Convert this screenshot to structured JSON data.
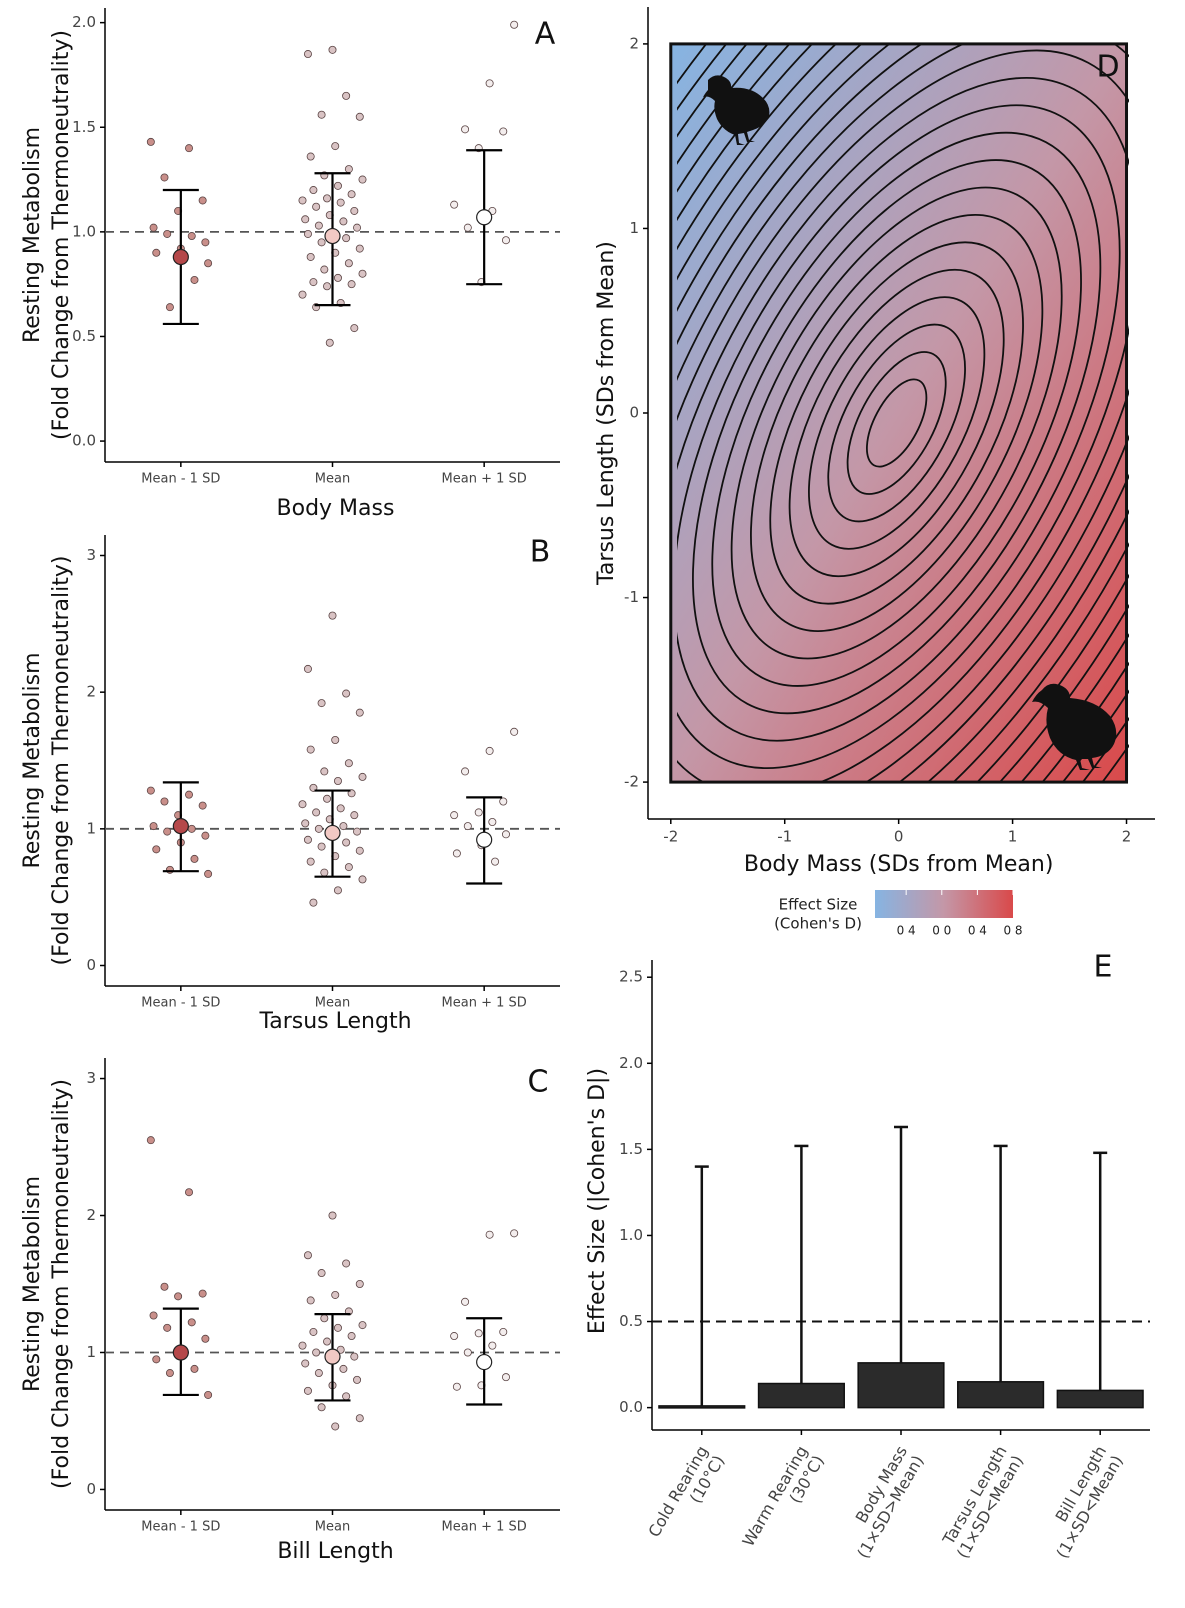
{
  "chart_data": [
    {
      "type": "dot",
      "label": "A",
      "xlabel": "Body Mass",
      "ylabel": [
        "Resting Metabolism",
        "(Fold Change from Thermoneutrality)"
      ],
      "categories": [
        "Mean - 1 SD",
        "Mean",
        "Mean + 1 SD"
      ],
      "ylim": [
        -0.1,
        2.07
      ],
      "yticks": [
        {
          "value": 0,
          "label": "0.0"
        },
        {
          "value": 0.5,
          "label": "0.5"
        },
        {
          "value": 1,
          "label": "1.0"
        },
        {
          "value": 1.5,
          "label": "1.5"
        },
        {
          "value": 2,
          "label": "2.0"
        }
      ],
      "hline": 1,
      "groups": [
        {
          "color": "#b5484a",
          "point_color": "#c98f8a",
          "mean": 0.88,
          "lower": 0.56,
          "upper": 1.2,
          "points": [
            1.43,
            1.4,
            1.26,
            1.15,
            1.1,
            1.02,
            0.98,
            0.99,
            0.95,
            0.92,
            0.9,
            0.77,
            0.64,
            0.85
          ]
        },
        {
          "color": "#f2c9c4",
          "point_color": "#d9c3c4",
          "mean": 0.98,
          "lower": 0.65,
          "upper": 1.28,
          "points": [
            1.87,
            1.85,
            1.65,
            1.56,
            1.55,
            1.41,
            1.36,
            1.3,
            1.27,
            1.25,
            1.22,
            1.2,
            1.18,
            1.16,
            1.15,
            1.14,
            1.12,
            1.1,
            1.08,
            1.06,
            1.05,
            1.03,
            1.02,
            1.0,
            0.99,
            0.97,
            0.95,
            0.92,
            0.9,
            0.88,
            0.85,
            0.82,
            0.8,
            0.78,
            0.76,
            0.75,
            0.74,
            0.7,
            0.66,
            0.64,
            0.54,
            0.47
          ]
        },
        {
          "color": "#ffffff",
          "point_color": "#f3eded",
          "mean": 1.07,
          "lower": 0.75,
          "upper": 1.39,
          "points": [
            1.99,
            1.71,
            1.49,
            1.48,
            1.4,
            1.13,
            1.1,
            1.02,
            0.96,
            0.76
          ]
        }
      ]
    },
    {
      "type": "dot",
      "label": "B",
      "xlabel": "Tarsus Length",
      "ylabel": [
        "Resting Metabolism",
        "(Fold Change from Thermoneutrality)"
      ],
      "categories": [
        "Mean - 1 SD",
        "Mean",
        "Mean + 1 SD"
      ],
      "ylim": [
        -0.15,
        3.15
      ],
      "yticks": [
        0,
        1,
        2,
        3
      ],
      "hline": 1,
      "groups": [
        {
          "color": "#b5484a",
          "point_color": "#c98f8a",
          "mean": 1.02,
          "lower": 0.69,
          "upper": 1.34,
          "points": [
            1.28,
            1.25,
            1.2,
            1.17,
            1.1,
            1.02,
            1.0,
            0.98,
            0.95,
            0.9,
            0.85,
            0.78,
            0.7,
            0.67
          ]
        },
        {
          "color": "#f2c9c4",
          "point_color": "#d9c3c4",
          "mean": 0.97,
          "lower": 0.65,
          "upper": 1.28,
          "points": [
            2.56,
            2.17,
            1.99,
            1.92,
            1.85,
            1.65,
            1.58,
            1.48,
            1.42,
            1.38,
            1.35,
            1.3,
            1.26,
            1.22,
            1.18,
            1.15,
            1.12,
            1.1,
            1.07,
            1.04,
            1.02,
            1.0,
            0.98,
            0.95,
            0.92,
            0.9,
            0.87,
            0.84,
            0.8,
            0.76,
            0.72,
            0.68,
            0.63,
            0.55,
            0.46
          ]
        },
        {
          "color": "#ffffff",
          "point_color": "#f3eded",
          "mean": 0.92,
          "lower": 0.6,
          "upper": 1.23,
          "points": [
            1.71,
            1.57,
            1.42,
            1.2,
            1.12,
            1.1,
            1.05,
            1.02,
            0.96,
            0.88,
            0.82,
            0.76
          ]
        }
      ]
    },
    {
      "type": "dot",
      "label": "C",
      "xlabel": "Bill Length",
      "ylabel": [
        "Resting Metabolism",
        "(Fold Change from Thermoneutrality)"
      ],
      "categories": [
        "Mean - 1 SD",
        "Mean",
        "Mean + 1 SD"
      ],
      "ylim": [
        -0.15,
        3.15
      ],
      "yticks": [
        0,
        1,
        2,
        3
      ],
      "hline": 1,
      "groups": [
        {
          "color": "#b5484a",
          "point_color": "#c98f8a",
          "mean": 1.0,
          "lower": 0.69,
          "upper": 1.32,
          "points": [
            2.55,
            2.17,
            1.48,
            1.43,
            1.41,
            1.27,
            1.22,
            1.18,
            1.1,
            1.0,
            0.95,
            0.88,
            0.85,
            0.69
          ]
        },
        {
          "color": "#f2c9c4",
          "point_color": "#d9c3c4",
          "mean": 0.97,
          "lower": 0.65,
          "upper": 1.28,
          "points": [
            2.0,
            1.71,
            1.65,
            1.58,
            1.5,
            1.42,
            1.38,
            1.3,
            1.25,
            1.2,
            1.18,
            1.15,
            1.12,
            1.08,
            1.05,
            1.02,
            1.0,
            0.97,
            0.95,
            0.92,
            0.88,
            0.85,
            0.8,
            0.76,
            0.72,
            0.68,
            0.6,
            0.52,
            0.46
          ]
        },
        {
          "color": "#ffffff",
          "point_color": "#f3eded",
          "mean": 0.93,
          "lower": 0.62,
          "upper": 1.25,
          "points": [
            1.87,
            1.86,
            1.37,
            1.15,
            1.14,
            1.12,
            1.05,
            1.0,
            0.82,
            0.76,
            0.75
          ]
        }
      ]
    },
    {
      "type": "heatmap",
      "label": "D",
      "xlabel": "Body Mass (SDs from Mean)",
      "ylabel": "Tarsus Length (SDs from Mean)",
      "xlim": [
        -2.2,
        2.25
      ],
      "ylim": [
        -2.2,
        2.2
      ],
      "xticks": [
        -2,
        -1,
        0,
        1,
        2
      ],
      "yticks": [
        -2,
        -1,
        0,
        1,
        2
      ],
      "extent": [
        -2,
        2
      ],
      "colors": [
        "#86b4e2",
        "#c497a7",
        "#d9494a"
      ],
      "legend_title": [
        "Effect Size",
        "(Cohen's D)"
      ],
      "clim": [
        -0.75,
        0.8
      ],
      "cticks": [
        {
          "value": -0.4,
          "label": "0 4"
        },
        {
          "value": 0,
          "label": "0 0"
        },
        {
          "value": 0.4,
          "label": "0 4"
        },
        {
          "value": 0.8,
          "label": "0 8"
        }
      ]
    },
    {
      "type": "bar",
      "label": "E",
      "ylabel": "Effect Size (|Cohen's D|)",
      "categories": [
        [
          "Cold Rearing",
          "(10°C)"
        ],
        [
          "Warm Rearing",
          "(30°C)"
        ],
        [
          "Body Mass",
          "(1×SD>Mean)"
        ],
        [
          "Tarsus Length",
          "(1×SD<Mean)"
        ],
        [
          "Bill Length",
          "(1×SD<Mean)"
        ]
      ],
      "values": [
        0.01,
        0.14,
        0.26,
        0.15,
        0.1
      ],
      "upper": [
        1.4,
        1.52,
        1.63,
        1.52,
        1.48
      ],
      "color": "#2b2b2b",
      "ylim": [
        -0.13,
        2.6
      ],
      "yticks": [
        {
          "value": 0,
          "label": "0.0"
        },
        {
          "value": 0.5,
          "label": "0.5"
        },
        {
          "value": 1,
          "label": "1.0"
        },
        {
          "value": 1.5,
          "label": "1.5"
        },
        {
          "value": 2,
          "label": "2.0"
        },
        {
          "value": 2.5,
          "label": "2.5"
        }
      ],
      "hline": 0.5
    }
  ]
}
